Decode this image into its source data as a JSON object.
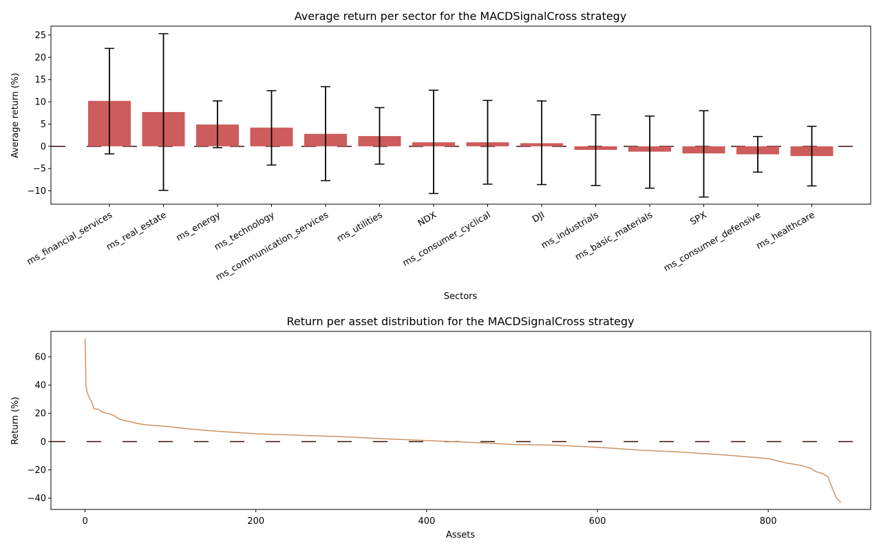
{
  "chart_data": [
    {
      "type": "bar",
      "title": "Average return per sector for the MACDSignalCross strategy",
      "xlabel": "Sectors",
      "ylabel": "Average return (%)",
      "ylim": [
        -13.0,
        27.0
      ],
      "yticks": [
        -10,
        -5,
        0,
        5,
        10,
        15,
        20,
        25
      ],
      "bar_color": "#cd5c5c",
      "errorbar_color": "#000000",
      "zero_line_color": "#3b0a0a",
      "categories": [
        "ms_financial_services",
        "ms_real_estate",
        "ms_energy",
        "ms_technology",
        "ms_communication_services",
        "ms_utilities",
        "NDX",
        "ms_consumer_cyclical",
        "DJI",
        "ms_industrials",
        "ms_basic_materials",
        "SPX",
        "ms_consumer_defensive",
        "ms_healthcare"
      ],
      "values": [
        10.2,
        7.7,
        4.9,
        4.2,
        2.8,
        2.3,
        0.9,
        0.9,
        0.7,
        -0.8,
        -1.2,
        -1.6,
        -1.8,
        -2.2
      ],
      "err_low": [
        -1.7,
        -9.9,
        -0.3,
        -4.2,
        -7.7,
        -4.0,
        -10.6,
        -8.5,
        -8.6,
        -8.8,
        -9.4,
        -11.4,
        -5.8,
        -8.9
      ],
      "err_high": [
        22.0,
        25.3,
        10.2,
        12.5,
        13.4,
        8.7,
        12.6,
        10.3,
        10.2,
        7.1,
        6.8,
        8.0,
        2.2,
        4.5
      ]
    },
    {
      "type": "line",
      "title": "Return per asset distribution for the MACDSignalCross strategy",
      "xlabel": "Assets",
      "ylabel": "Return (%)",
      "xlim": [
        -40,
        920
      ],
      "ylim": [
        -48,
        78
      ],
      "xticks": [
        0,
        200,
        400,
        600,
        800
      ],
      "yticks": [
        -40,
        -20,
        0,
        20,
        40,
        60
      ],
      "line_color": "#cd9260",
      "zero_line_color": "#3b0a0a",
      "n_assets": 885,
      "x": [
        0,
        1,
        2,
        3,
        5,
        7,
        9,
        10,
        12,
        15,
        18,
        20,
        25,
        30,
        35,
        40,
        45,
        50,
        60,
        70,
        80,
        100,
        120,
        150,
        200,
        250,
        300,
        350,
        400,
        450,
        500,
        550,
        600,
        650,
        700,
        750,
        800,
        820,
        840,
        850,
        855,
        860,
        865,
        870,
        875,
        880,
        885
      ],
      "y": [
        73,
        40,
        36,
        34,
        31,
        29,
        26,
        23.5,
        23,
        23,
        22,
        21,
        20,
        19.5,
        18,
        16,
        15,
        14.5,
        13,
        12,
        11.5,
        10.5,
        9,
        7.5,
        5.5,
        4.5,
        3.5,
        2,
        0.8,
        -0.5,
        -2,
        -2.5,
        -4,
        -6,
        -7.5,
        -9.5,
        -12,
        -15,
        -17,
        -19,
        -21,
        -22,
        -23,
        -25,
        -33,
        -40,
        -43
      ]
    }
  ]
}
